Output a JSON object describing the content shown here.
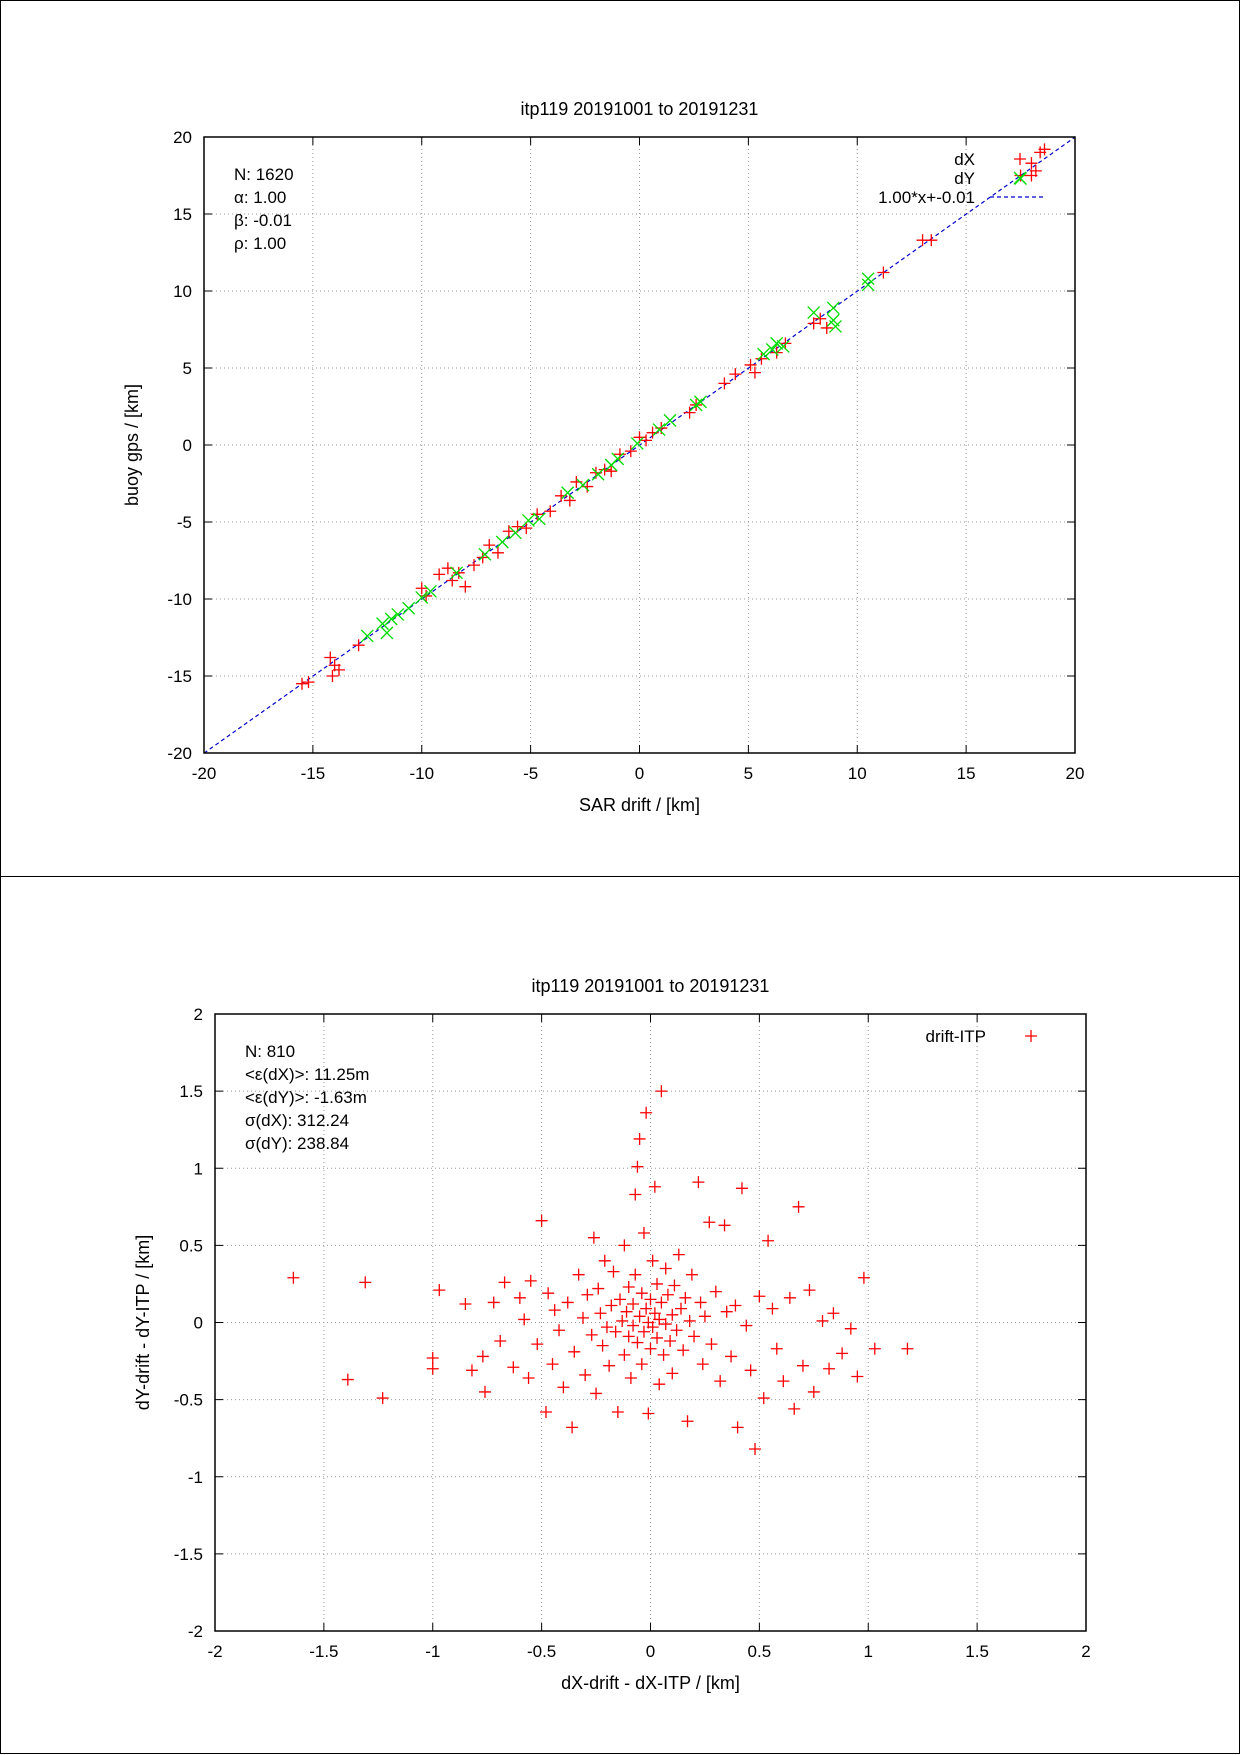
{
  "chart_data": [
    {
      "type": "scatter",
      "title": "itp119 20191001 to 20191231",
      "xlabel": "SAR drift / [km]",
      "ylabel": "buoy gps / [km]",
      "xlim": [
        -20,
        20
      ],
      "ylim": [
        -20,
        20
      ],
      "xticks": [
        "-20",
        "-15",
        "-10",
        "-5",
        "0",
        "5",
        "10",
        "15",
        "20"
      ],
      "yticks": [
        "-20",
        "-15",
        "-10",
        "-5",
        "0",
        "5",
        "10",
        "15",
        "20"
      ],
      "grid": true,
      "legend_position": "top-right",
      "stats": [
        "N: 1620",
        "α: 1.00",
        "β: -0.01",
        "ρ: 1.00"
      ],
      "fit_line": {
        "name": "1.00*x+-0.01",
        "slope": 1.0,
        "intercept": -0.01,
        "color": "#0000cc"
      },
      "series": [
        {
          "name": "dX",
          "marker": "+",
          "color": "#ff0000",
          "points": [
            [
              -15.5,
              -15.5
            ],
            [
              -15.2,
              -15.4
            ],
            [
              -14.2,
              -13.8
            ],
            [
              -14.0,
              -14.3
            ],
            [
              -13.8,
              -14.6
            ],
            [
              -14.1,
              -15.0
            ],
            [
              -12.9,
              -13.0
            ],
            [
              -10.0,
              -9.3
            ],
            [
              -9.8,
              -9.8
            ],
            [
              -9.2,
              -8.4
            ],
            [
              -8.8,
              -8.0
            ],
            [
              -8.6,
              -8.8
            ],
            [
              -8.3,
              -8.3
            ],
            [
              -8.0,
              -9.2
            ],
            [
              -7.6,
              -7.8
            ],
            [
              -7.2,
              -7.3
            ],
            [
              -6.9,
              -6.5
            ],
            [
              -6.5,
              -7.0
            ],
            [
              -6.0,
              -5.6
            ],
            [
              -5.6,
              -5.3
            ],
            [
              -5.2,
              -5.4
            ],
            [
              -4.7,
              -4.5
            ],
            [
              -4.1,
              -4.3
            ],
            [
              -3.6,
              -3.3
            ],
            [
              -3.2,
              -3.6
            ],
            [
              -2.9,
              -2.4
            ],
            [
              -2.4,
              -2.7
            ],
            [
              -2.0,
              -1.8
            ],
            [
              -1.6,
              -1.6
            ],
            [
              -1.3,
              -1.7
            ],
            [
              -0.9,
              -0.6
            ],
            [
              -0.4,
              -0.4
            ],
            [
              0.0,
              0.5
            ],
            [
              0.3,
              0.3
            ],
            [
              0.6,
              0.8
            ],
            [
              1.0,
              1.1
            ],
            [
              2.3,
              2.1
            ],
            [
              2.6,
              2.6
            ],
            [
              3.9,
              4.0
            ],
            [
              4.4,
              4.6
            ],
            [
              5.1,
              5.2
            ],
            [
              5.3,
              4.7
            ],
            [
              5.6,
              5.6
            ],
            [
              6.3,
              6.0
            ],
            [
              6.7,
              6.6
            ],
            [
              8.0,
              7.9
            ],
            [
              8.3,
              8.2
            ],
            [
              8.6,
              7.6
            ],
            [
              11.2,
              11.2
            ],
            [
              13.0,
              13.3
            ],
            [
              13.4,
              13.3
            ],
            [
              17.5,
              17.5
            ],
            [
              18.0,
              18.3
            ],
            [
              18.2,
              17.8
            ],
            [
              18.4,
              19.0
            ],
            [
              18.6,
              19.2
            ],
            [
              18.0,
              17.5
            ]
          ]
        },
        {
          "name": "dY",
          "marker": "x",
          "color": "#00dd00",
          "points": [
            [
              -12.5,
              -12.4
            ],
            [
              -11.8,
              -11.6
            ],
            [
              -11.6,
              -12.2
            ],
            [
              -11.4,
              -11.3
            ],
            [
              -11.1,
              -11.0
            ],
            [
              -10.6,
              -10.6
            ],
            [
              -10.0,
              -9.9
            ],
            [
              -9.6,
              -9.5
            ],
            [
              -8.4,
              -8.3
            ],
            [
              -7.1,
              -7.1
            ],
            [
              -6.3,
              -6.3
            ],
            [
              -5.7,
              -5.7
            ],
            [
              -5.1,
              -4.9
            ],
            [
              -4.6,
              -4.8
            ],
            [
              -3.3,
              -3.1
            ],
            [
              -2.6,
              -2.6
            ],
            [
              -1.9,
              -1.9
            ],
            [
              -1.3,
              -1.3
            ],
            [
              -1.0,
              -0.9
            ],
            [
              -0.1,
              0.1
            ],
            [
              0.9,
              1.0
            ],
            [
              1.4,
              1.6
            ],
            [
              2.6,
              2.6
            ],
            [
              2.8,
              2.8
            ],
            [
              5.7,
              5.9
            ],
            [
              6.1,
              6.2
            ],
            [
              6.3,
              6.6
            ],
            [
              6.6,
              6.4
            ],
            [
              8.0,
              8.6
            ],
            [
              8.9,
              8.1
            ],
            [
              8.9,
              8.9
            ],
            [
              9.0,
              7.7
            ],
            [
              10.5,
              10.4
            ],
            [
              10.5,
              10.8
            ],
            [
              17.5,
              17.3
            ]
          ]
        }
      ]
    },
    {
      "type": "scatter",
      "title": "itp119 20191001 to 20191231",
      "xlabel": "dX-drift - dX-ITP / [km]",
      "ylabel": "dY-drift - dY-ITP / [km]",
      "xlim": [
        -2,
        2
      ],
      "ylim": [
        -2,
        2
      ],
      "xticks": [
        "-2",
        "-1.5",
        "-1",
        "-0.5",
        "0",
        "0.5",
        "1",
        "1.5",
        "2"
      ],
      "yticks": [
        "-2",
        "-1.5",
        "-1",
        "-0.5",
        "0",
        "0.5",
        "1",
        "1.5",
        "2"
      ],
      "grid": true,
      "legend_position": "top-right",
      "stats": [
        "N: 810",
        "<ε(dX)>:  11.25m",
        "<ε(dY)>: -1.63m",
        "σ(dX):  312.24",
        "σ(dY):  238.84"
      ],
      "series": [
        {
          "name": "drift-ITP",
          "marker": "+",
          "color": "#ff0000",
          "points": [
            [
              -1.64,
              0.29
            ],
            [
              -1.31,
              0.26
            ],
            [
              -1.39,
              -0.37
            ],
            [
              -1.23,
              -0.49
            ],
            [
              -1.0,
              -0.23
            ],
            [
              -1.0,
              -0.3
            ],
            [
              -0.97,
              0.21
            ],
            [
              -0.85,
              0.12
            ],
            [
              -0.82,
              -0.31
            ],
            [
              -0.77,
              -0.22
            ],
            [
              -0.76,
              -0.45
            ],
            [
              -0.72,
              0.13
            ],
            [
              -0.69,
              -0.12
            ],
            [
              -0.67,
              0.26
            ],
            [
              -0.63,
              -0.29
            ],
            [
              -0.6,
              0.16
            ],
            [
              -0.58,
              0.02
            ],
            [
              -0.56,
              -0.36
            ],
            [
              -0.55,
              0.27
            ],
            [
              -0.52,
              -0.14
            ],
            [
              -0.5,
              0.66
            ],
            [
              -0.48,
              -0.58
            ],
            [
              -0.47,
              0.19
            ],
            [
              -0.45,
              -0.27
            ],
            [
              -0.44,
              0.08
            ],
            [
              -0.42,
              -0.05
            ],
            [
              -0.4,
              -0.42
            ],
            [
              -0.38,
              0.13
            ],
            [
              -0.36,
              -0.68
            ],
            [
              -0.35,
              -0.19
            ],
            [
              -0.33,
              0.31
            ],
            [
              -0.31,
              0.03
            ],
            [
              -0.3,
              -0.34
            ],
            [
              -0.29,
              0.18
            ],
            [
              -0.27,
              -0.08
            ],
            [
              -0.26,
              0.55
            ],
            [
              -0.25,
              -0.46
            ],
            [
              -0.24,
              0.22
            ],
            [
              -0.23,
              0.06
            ],
            [
              -0.22,
              -0.15
            ],
            [
              -0.21,
              0.4
            ],
            [
              -0.2,
              -0.03
            ],
            [
              -0.19,
              -0.28
            ],
            [
              -0.18,
              0.11
            ],
            [
              -0.17,
              0.33
            ],
            [
              -0.16,
              -0.06
            ],
            [
              -0.15,
              -0.58
            ],
            [
              -0.14,
              0.15
            ],
            [
              -0.13,
              0.01
            ],
            [
              -0.12,
              -0.21
            ],
            [
              -0.12,
              0.5
            ],
            [
              -0.11,
              0.07
            ],
            [
              -0.1,
              -0.09
            ],
            [
              -0.1,
              0.23
            ],
            [
              -0.09,
              -0.36
            ],
            [
              -0.08,
              0.12
            ],
            [
              -0.08,
              -0.02
            ],
            [
              -0.07,
              0.83
            ],
            [
              -0.07,
              0.31
            ],
            [
              -0.06,
              1.01
            ],
            [
              -0.06,
              -0.13
            ],
            [
              -0.05,
              1.19
            ],
            [
              -0.05,
              0.04
            ],
            [
              -0.04,
              -0.27
            ],
            [
              -0.04,
              0.19
            ],
            [
              -0.03,
              0.58
            ],
            [
              -0.03,
              -0.06
            ],
            [
              -0.02,
              1.36
            ],
            [
              -0.02,
              0.09
            ],
            [
              -0.01,
              -0.59
            ],
            [
              -0.01,
              0.0
            ],
            [
              0.0,
              0.15
            ],
            [
              0.0,
              -0.17
            ],
            [
              0.01,
              0.4
            ],
            [
              0.01,
              -0.03
            ],
            [
              0.02,
              0.88
            ],
            [
              0.02,
              0.06
            ],
            [
              0.03,
              -0.1
            ],
            [
              0.03,
              0.25
            ],
            [
              0.04,
              -0.4
            ],
            [
              0.04,
              0.02
            ],
            [
              0.05,
              1.5
            ],
            [
              0.05,
              0.13
            ],
            [
              0.06,
              -0.21
            ],
            [
              0.07,
              0.35
            ],
            [
              0.07,
              -0.01
            ],
            [
              0.08,
              0.18
            ],
            [
              0.09,
              -0.12
            ],
            [
              0.1,
              0.05
            ],
            [
              0.1,
              -0.33
            ],
            [
              0.11,
              0.24
            ],
            [
              0.12,
              -0.05
            ],
            [
              0.13,
              0.44
            ],
            [
              0.14,
              0.09
            ],
            [
              0.15,
              -0.18
            ],
            [
              0.16,
              0.16
            ],
            [
              0.17,
              -0.64
            ],
            [
              0.18,
              0.01
            ],
            [
              0.19,
              0.31
            ],
            [
              0.2,
              -0.09
            ],
            [
              0.22,
              0.91
            ],
            [
              0.23,
              0.13
            ],
            [
              0.24,
              -0.27
            ],
            [
              0.25,
              0.04
            ],
            [
              0.27,
              0.65
            ],
            [
              0.28,
              -0.14
            ],
            [
              0.3,
              0.2
            ],
            [
              0.32,
              -0.38
            ],
            [
              0.34,
              0.63
            ],
            [
              0.35,
              0.07
            ],
            [
              0.37,
              -0.22
            ],
            [
              0.39,
              0.11
            ],
            [
              0.4,
              -0.68
            ],
            [
              0.42,
              0.87
            ],
            [
              0.44,
              -0.02
            ],
            [
              0.46,
              -0.31
            ],
            [
              0.48,
              -0.82
            ],
            [
              0.5,
              0.17
            ],
            [
              0.52,
              -0.49
            ],
            [
              0.54,
              0.53
            ],
            [
              0.56,
              0.09
            ],
            [
              0.58,
              -0.17
            ],
            [
              0.61,
              -0.38
            ],
            [
              0.64,
              0.16
            ],
            [
              0.66,
              -0.56
            ],
            [
              0.68,
              0.75
            ],
            [
              0.7,
              -0.28
            ],
            [
              0.73,
              0.21
            ],
            [
              0.75,
              -0.45
            ],
            [
              0.79,
              0.01
            ],
            [
              0.82,
              -0.3
            ],
            [
              0.84,
              0.06
            ],
            [
              0.88,
              -0.2
            ],
            [
              0.92,
              -0.04
            ],
            [
              0.95,
              -0.35
            ],
            [
              0.98,
              0.29
            ],
            [
              1.03,
              -0.17
            ],
            [
              1.18,
              -0.17
            ]
          ]
        }
      ]
    }
  ]
}
